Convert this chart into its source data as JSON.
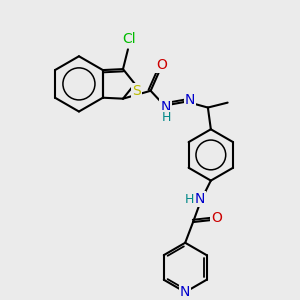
{
  "bg_color": "#ebebeb",
  "bond_color": "#000000",
  "atom_colors": {
    "Cl": "#00bb00",
    "S": "#bbbb00",
    "N": "#0000cc",
    "O": "#cc0000",
    "H": "#008888",
    "C": "#000000"
  },
  "figsize": [
    3.0,
    3.0
  ],
  "dpi": 100
}
